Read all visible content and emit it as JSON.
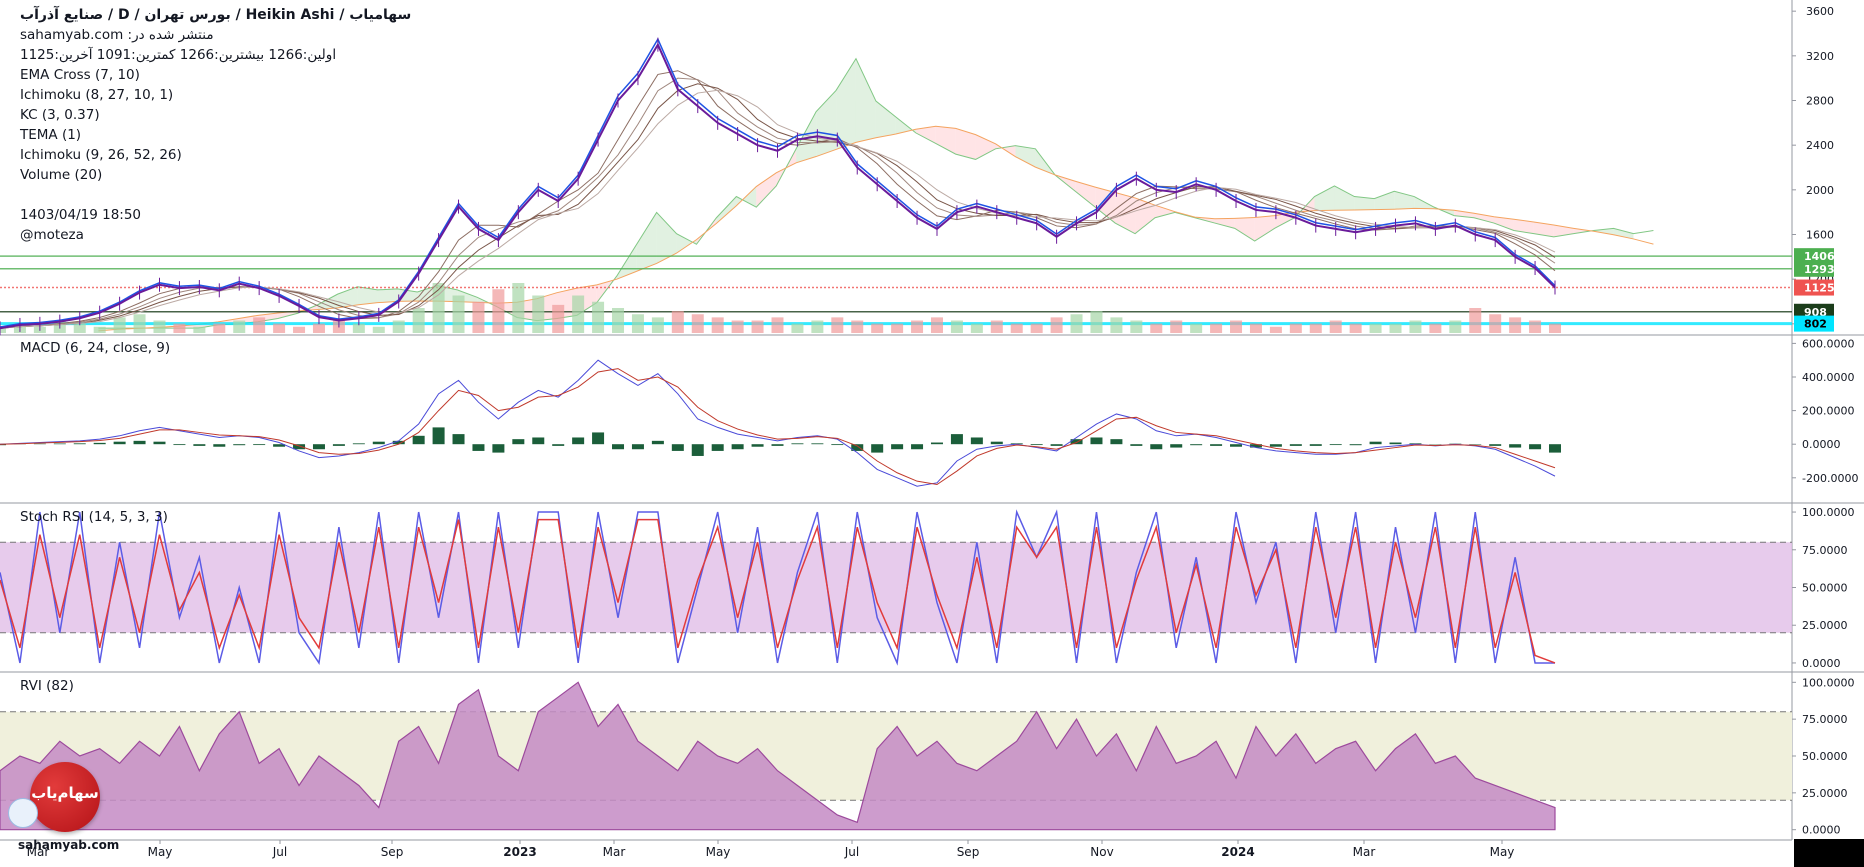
{
  "header": {
    "title_symbol": "سهامیاب / Heikin Ashi",
    "title_rest": "/ بورس تهران / D / صنایع آذرآب",
    "published_on": "منتشر شده در: sahamyab.com",
    "ohlc": "اولین:1266  بیشترین:1266  کمترین:1091  آخرین:1125",
    "indicators": [
      "EMA Cross (7, 10)",
      "Ichimoku (8, 27, 10, 1)",
      "KC (3, 0.37)",
      "TEMA (1)",
      "Ichimoku (9, 26, 52, 26)",
      "Volume (20)"
    ],
    "timestamp": "1403/04/19 18:50",
    "author": "@moteza"
  },
  "panes": {
    "macd_label": "MACD (6, 24, close, 9)",
    "stoch_label": "Stoch RSI (14, 5, 3, 3)",
    "rvi_label": "RVI (82)"
  },
  "branding": {
    "logo_text": "سهام‌یاب",
    "site": "sahamyab.com"
  },
  "colors": {
    "price_line": "#6a1b9a",
    "blue_line": "#1e53e5",
    "cloud_green": "#c8e6c9",
    "cloud_red": "#ffcdd2",
    "macd_hist": "#1b5e3a",
    "stoch_k": "#5c5ce6",
    "stoch_d": "#e23b3b",
    "stoch_band": "#e1bee7",
    "rvi_fill": "#c48bc4",
    "rvi_band": "#f0f0dc",
    "cyan_line": "#00e5ff"
  },
  "chart_data": [
    {
      "type": "line",
      "name": "price",
      "x_ticks": [
        "Mar",
        "May",
        "Jul",
        "Sep",
        "2023",
        "Mar",
        "May",
        "Jul",
        "Sep",
        "Nov",
        "2024",
        "Mar",
        "May"
      ],
      "y_ticks": [
        3600,
        3200,
        2800,
        2400,
        2000,
        1600,
        1200,
        800
      ],
      "ylim": [
        700,
        3700
      ],
      "values": [
        760,
        790,
        800,
        820,
        850,
        900,
        980,
        1080,
        1150,
        1120,
        1130,
        1100,
        1160,
        1120,
        1050,
        960,
        860,
        830,
        850,
        880,
        1000,
        1250,
        1550,
        1850,
        1650,
        1550,
        1800,
        2000,
        1900,
        2100,
        2450,
        2800,
        3000,
        3300,
        2900,
        2750,
        2600,
        2500,
        2400,
        2350,
        2450,
        2480,
        2450,
        2200,
        2050,
        1900,
        1750,
        1650,
        1800,
        1850,
        1800,
        1750,
        1700,
        1580,
        1700,
        1800,
        2000,
        2100,
        2000,
        1980,
        2050,
        2000,
        1900,
        1820,
        1800,
        1750,
        1680,
        1650,
        1620,
        1650,
        1680,
        1700,
        1650,
        1680,
        1600,
        1550,
        1400,
        1300,
        1125
      ],
      "price_labels": [
        {
          "value": 1406,
          "label": "1406",
          "color": "#4caf50"
        },
        {
          "value": 1293,
          "label": "1293",
          "color": "#4caf50"
        },
        {
          "value": 1125,
          "label": "1125",
          "color": "#ef5350"
        },
        {
          "value": 908,
          "label": "908",
          "color": "#1b3d1b"
        },
        {
          "value": 802,
          "label": "802",
          "color": "#00e5ff"
        }
      ]
    },
    {
      "type": "bar",
      "name": "volume",
      "values": [
        2,
        3,
        2,
        4,
        3,
        2,
        5,
        6,
        4,
        3,
        2,
        3,
        4,
        5,
        3,
        2,
        3,
        4,
        3,
        2,
        4,
        8,
        16,
        12,
        10,
        14,
        16,
        12,
        9,
        12,
        10,
        8,
        6,
        5,
        7,
        6,
        5,
        4,
        4,
        5,
        3,
        4,
        5,
        4,
        3,
        3,
        4,
        5,
        4,
        3,
        4,
        3,
        3,
        5,
        6,
        7,
        5,
        4,
        3,
        4,
        3,
        3,
        4,
        3,
        2,
        3,
        3,
        4,
        3,
        3,
        3,
        4,
        3,
        4,
        8,
        6,
        5,
        4,
        3
      ]
    },
    {
      "type": "line",
      "name": "MACD",
      "y_ticks": [
        600,
        400,
        200,
        0,
        -200
      ],
      "ylim": [
        -350,
        650
      ],
      "macd": [
        0,
        5,
        10,
        15,
        20,
        30,
        50,
        80,
        100,
        80,
        60,
        40,
        50,
        40,
        10,
        -40,
        -80,
        -70,
        -50,
        -20,
        20,
        120,
        300,
        380,
        250,
        150,
        250,
        320,
        280,
        380,
        500,
        420,
        350,
        420,
        300,
        150,
        100,
        60,
        40,
        20,
        40,
        50,
        30,
        -50,
        -150,
        -200,
        -250,
        -230,
        -100,
        -30,
        -10,
        0,
        -20,
        -40,
        40,
        120,
        180,
        150,
        80,
        50,
        60,
        40,
        10,
        -20,
        -40,
        -50,
        -60,
        -60,
        -50,
        -20,
        -10,
        0,
        -10,
        0,
        -10,
        -30,
        -80,
        -130,
        -190
      ],
      "signal": [
        0,
        3,
        7,
        11,
        15,
        22,
        35,
        60,
        85,
        85,
        70,
        55,
        50,
        45,
        25,
        -10,
        -50,
        -60,
        -55,
        -35,
        0,
        70,
        200,
        320,
        290,
        200,
        220,
        280,
        290,
        340,
        430,
        450,
        380,
        400,
        340,
        220,
        140,
        90,
        55,
        30,
        35,
        45,
        35,
        -10,
        -100,
        -170,
        -220,
        -240,
        -160,
        -70,
        -25,
        -5,
        -15,
        -30,
        10,
        80,
        150,
        160,
        110,
        70,
        60,
        50,
        25,
        0,
        -25,
        -40,
        -50,
        -55,
        -50,
        -35,
        -20,
        -5,
        -8,
        -3,
        -7,
        -20,
        -60,
        -100,
        -140
      ],
      "histogram": [
        0,
        2,
        3,
        4,
        5,
        8,
        15,
        20,
        15,
        -5,
        -10,
        -15,
        0,
        -5,
        -15,
        -30,
        -30,
        -10,
        5,
        15,
        20,
        50,
        100,
        60,
        -40,
        -50,
        30,
        40,
        -10,
        40,
        70,
        -30,
        -30,
        20,
        -40,
        -70,
        -40,
        -30,
        -15,
        -10,
        5,
        5,
        -5,
        -40,
        -50,
        -30,
        -30,
        10,
        60,
        40,
        15,
        5,
        -5,
        -10,
        30,
        40,
        30,
        -10,
        -30,
        -20,
        0,
        -10,
        -15,
        -20,
        -15,
        -10,
        -10,
        -5,
        0,
        15,
        10,
        5,
        -2,
        3,
        -3,
        -10,
        -20,
        -30,
        -50
      ]
    },
    {
      "type": "line",
      "name": "Stoch RSI",
      "y_ticks": [
        100,
        75,
        50,
        25,
        0
      ],
      "ylim": [
        -6,
        106
      ],
      "band": [
        20,
        80
      ],
      "k": [
        60,
        0,
        100,
        20,
        100,
        0,
        80,
        10,
        100,
        30,
        70,
        0,
        50,
        0,
        100,
        20,
        0,
        90,
        10,
        100,
        0,
        100,
        30,
        100,
        0,
        100,
        10,
        100,
        100,
        0,
        100,
        30,
        100,
        100,
        0,
        50,
        100,
        20,
        90,
        0,
        60,
        100,
        0,
        100,
        30,
        0,
        100,
        40,
        0,
        80,
        0,
        100,
        70,
        100,
        0,
        100,
        0,
        60,
        100,
        10,
        70,
        0,
        100,
        40,
        80,
        0,
        100,
        20,
        100,
        0,
        90,
        20,
        100,
        0,
        100,
        0,
        70,
        0,
        0
      ],
      "d": [
        55,
        10,
        85,
        30,
        85,
        10,
        70,
        20,
        85,
        35,
        60,
        10,
        45,
        10,
        85,
        30,
        10,
        80,
        20,
        90,
        10,
        90,
        40,
        95,
        10,
        90,
        20,
        95,
        95,
        10,
        90,
        40,
        95,
        95,
        10,
        55,
        90,
        30,
        80,
        10,
        55,
        90,
        10,
        90,
        40,
        10,
        90,
        45,
        10,
        70,
        10,
        90,
        70,
        90,
        10,
        90,
        10,
        55,
        90,
        20,
        65,
        10,
        90,
        45,
        75,
        10,
        90,
        30,
        90,
        10,
        80,
        30,
        90,
        10,
        90,
        10,
        60,
        5,
        0
      ]
    },
    {
      "type": "area",
      "name": "RVI",
      "y_ticks": [
        100,
        75,
        50,
        25,
        0
      ],
      "ylim": [
        -7,
        107
      ],
      "band": [
        20,
        80
      ],
      "values": [
        40,
        50,
        45,
        60,
        50,
        55,
        45,
        60,
        50,
        70,
        40,
        65,
        80,
        45,
        55,
        30,
        50,
        40,
        30,
        15,
        60,
        70,
        45,
        85,
        95,
        50,
        40,
        80,
        90,
        100,
        70,
        85,
        60,
        50,
        40,
        60,
        50,
        45,
        55,
        40,
        30,
        20,
        10,
        5,
        55,
        70,
        50,
        60,
        45,
        40,
        50,
        60,
        80,
        55,
        75,
        50,
        65,
        40,
        70,
        45,
        50,
        60,
        35,
        70,
        50,
        65,
        45,
        55,
        60,
        40,
        55,
        65,
        45,
        50,
        35,
        30,
        25,
        20,
        15
      ]
    }
  ]
}
